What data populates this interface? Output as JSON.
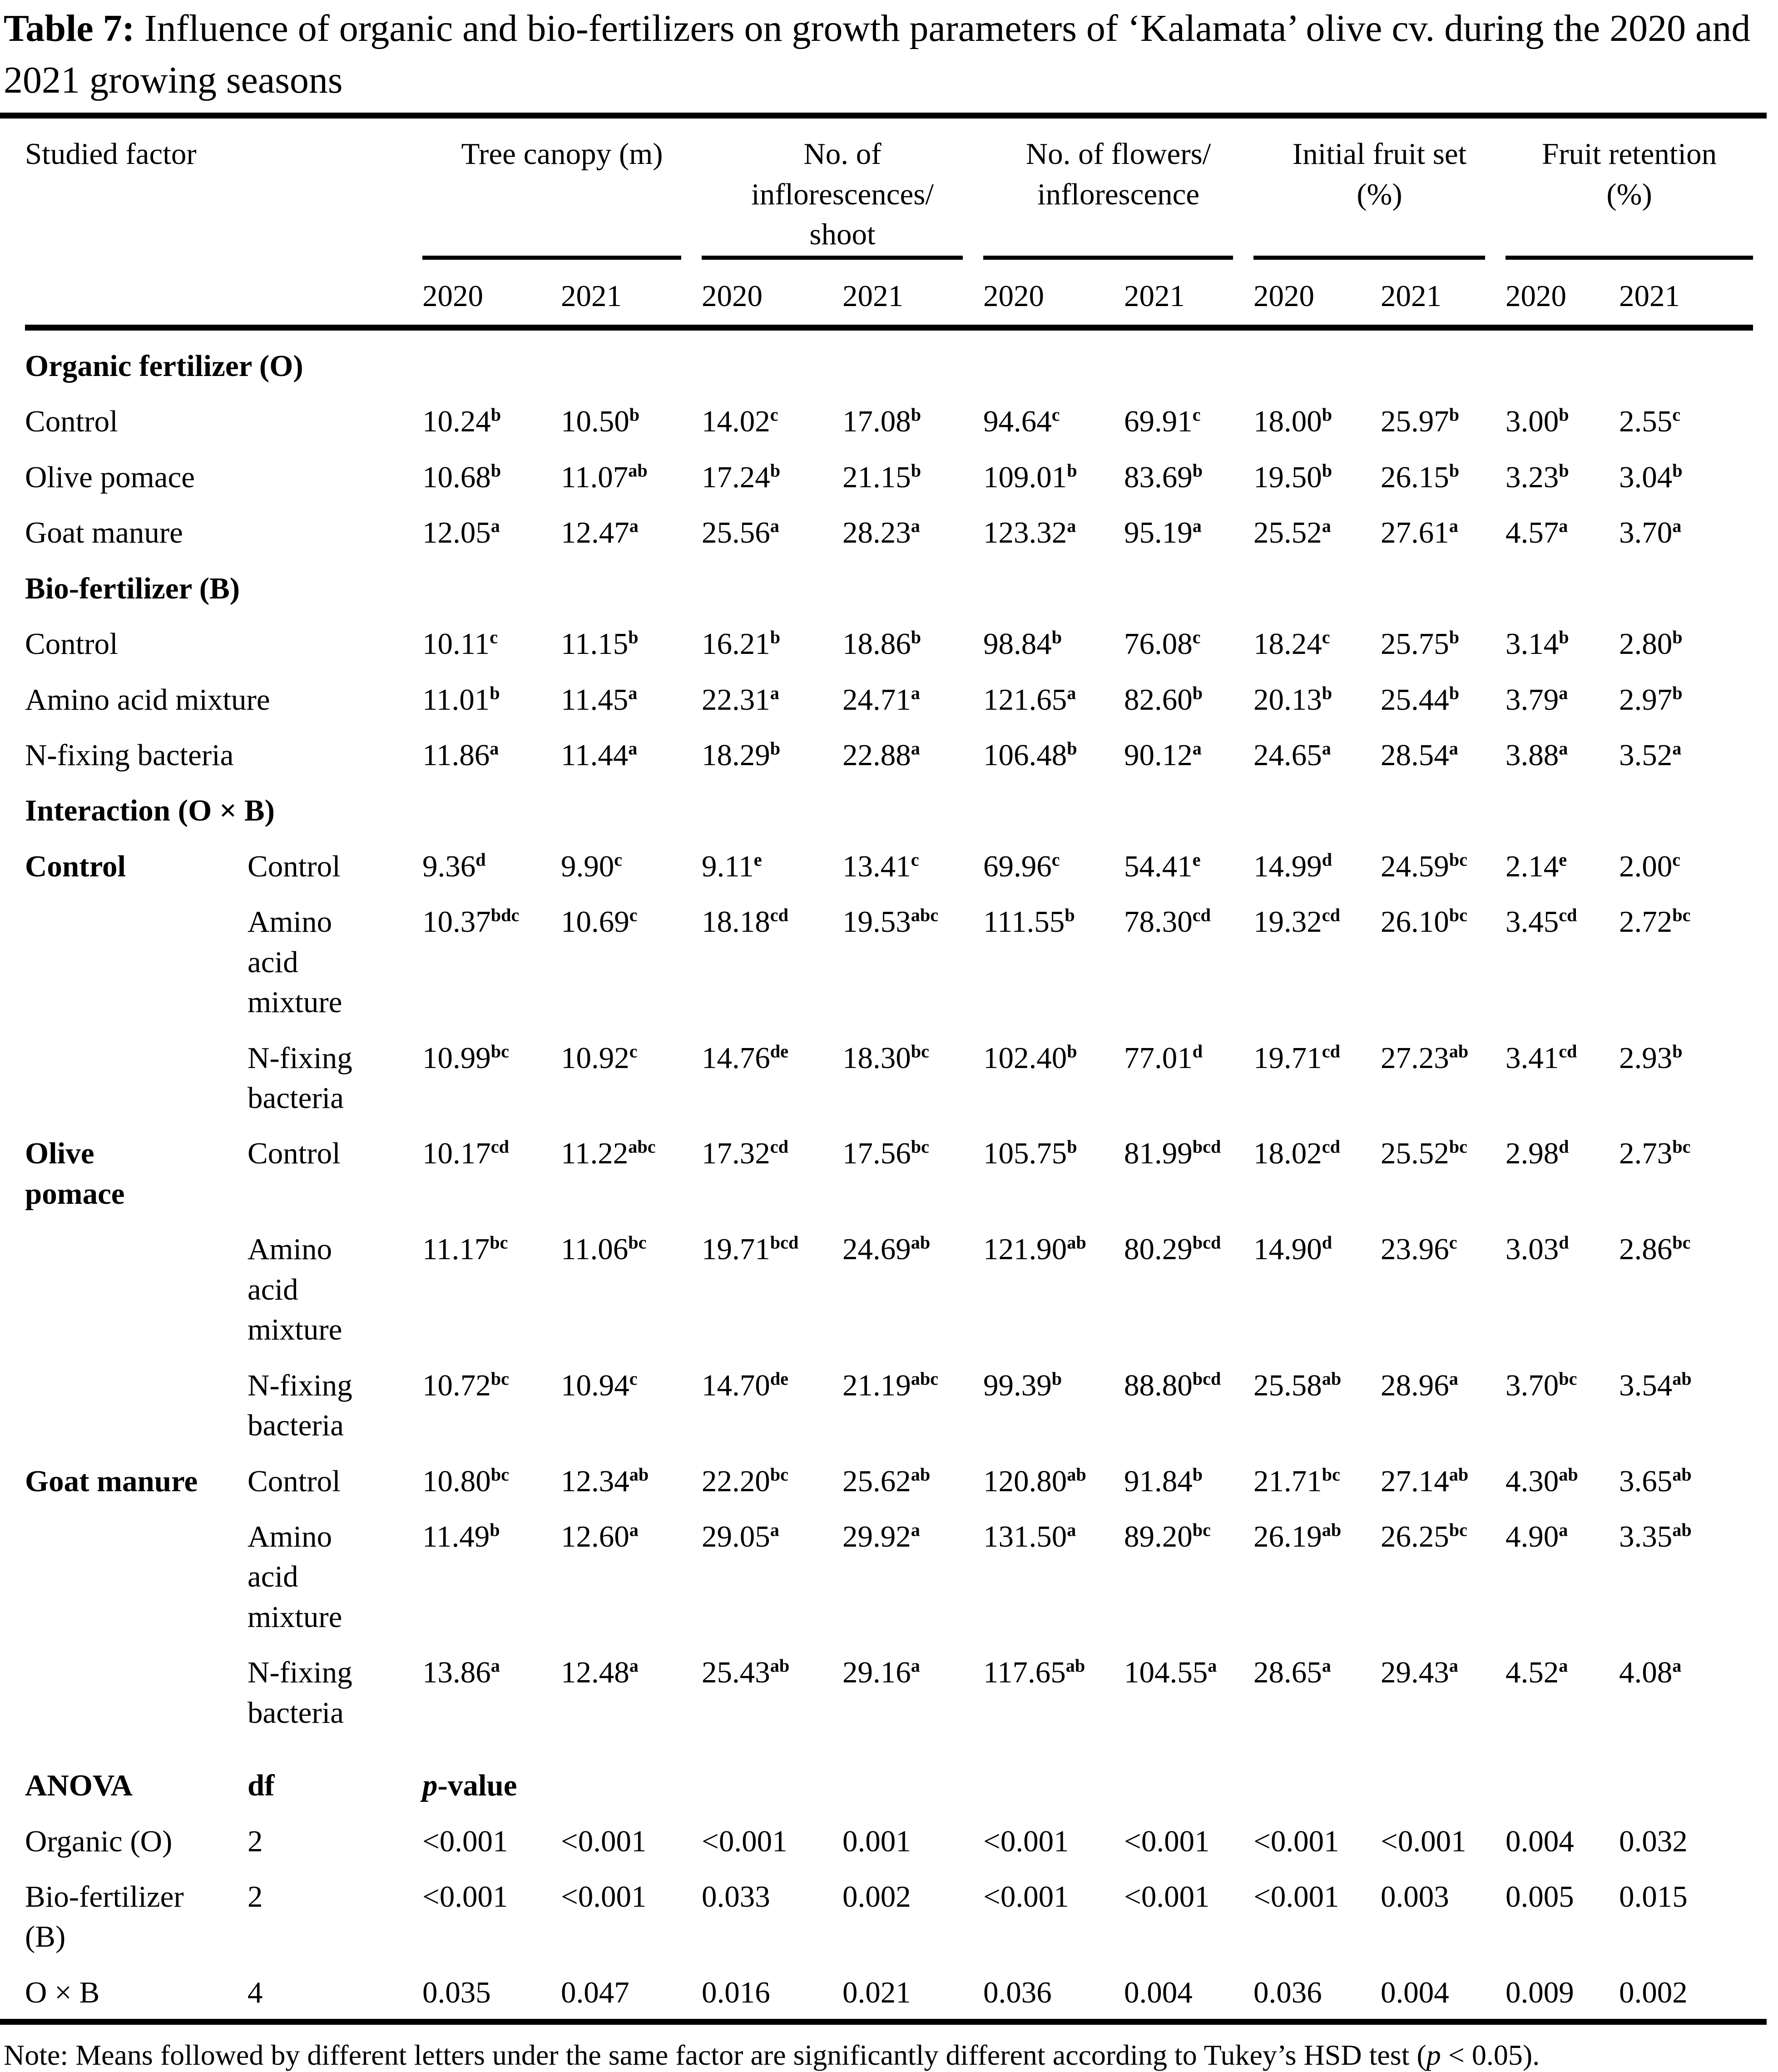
{
  "title": {
    "label": "Table 7:",
    "text": " Influence of organic and bio-fertilizers on growth parameters of ‘Kalamata’ olive cv. during the 2020 and 2021 growing seasons"
  },
  "table": {
    "header": {
      "studied_factor": "Studied factor",
      "groups": [
        {
          "label": "Tree canopy (m)"
        },
        {
          "label": "No. of\ninflorescences/\nshoot"
        },
        {
          "label": "No. of flowers/\ninflorescence"
        },
        {
          "label": "Initial fruit set\n(%)"
        },
        {
          "label": "Fruit retention\n(%)"
        }
      ],
      "years": [
        "2020",
        "2021"
      ]
    },
    "rows": [
      {
        "kind": "section",
        "label": "Organic fertilizer (O)"
      },
      {
        "kind": "data",
        "label": "Control",
        "cells": [
          "10.24^b",
          "10.50^b",
          "14.02^c",
          "17.08^b",
          "94.64^c",
          "69.91^c",
          "18.00^b",
          "25.97^b",
          "3.00^b",
          "2.55^c"
        ]
      },
      {
        "kind": "data",
        "label": "Olive pomace",
        "cells": [
          "10.68^b",
          "11.07^ab",
          "17.24^b",
          "21.15^b",
          "109.01^b",
          "83.69^b",
          "19.50^b",
          "26.15^b",
          "3.23^b",
          "3.04^b"
        ]
      },
      {
        "kind": "data",
        "label": "Goat manure",
        "cells": [
          "12.05^a",
          "12.47^a",
          "25.56^a",
          "28.23^a",
          "123.32^a",
          "95.19^a",
          "25.52^a",
          "27.61^a",
          "4.57^a",
          "3.70^a"
        ]
      },
      {
        "kind": "section",
        "label": "Bio-fertilizer (B)"
      },
      {
        "kind": "data",
        "label": "Control",
        "cells": [
          "10.11^c",
          "11.15^b",
          "16.21^b",
          "18.86^b",
          "98.84^b",
          "76.08^c",
          "18.24^c",
          "25.75^b",
          "3.14^b",
          "2.80^b"
        ]
      },
      {
        "kind": "data",
        "label": "Amino acid mixture",
        "cells": [
          "11.01^b",
          "11.45^a",
          "22.31^a",
          "24.71^a",
          "121.65^a",
          "82.60^b",
          "20.13^b",
          "25.44^b",
          "3.79^a",
          "2.97^b"
        ]
      },
      {
        "kind": "data",
        "label": "N-fixing bacteria",
        "cells": [
          "11.86^a",
          "11.44^a",
          "18.29^b",
          "22.88^a",
          "106.48^b",
          "90.12^a",
          "24.65^a",
          "28.54^a",
          "3.88^a",
          "3.52^a"
        ]
      },
      {
        "kind": "section",
        "label": "Interaction (O × B)"
      },
      {
        "kind": "idata",
        "f1": "Control",
        "f2": "Control",
        "cells": [
          "9.36^d",
          "9.90^c",
          "9.11^e",
          "13.41^c",
          "69.96^c",
          "54.41^e",
          "14.99^d",
          "24.59^bc",
          "2.14^e",
          "2.00^c"
        ]
      },
      {
        "kind": "idata",
        "f1": "",
        "f2": "Amino\nacid\nmixture",
        "cells": [
          "10.37^bdc",
          "10.69^c",
          "18.18^cd",
          "19.53^abc",
          "111.55^b",
          "78.30^cd",
          "19.32^cd",
          "26.10^bc",
          "3.45^cd",
          "2.72^bc"
        ]
      },
      {
        "kind": "idata",
        "f1": "",
        "f2": "N-fixing\nbacteria",
        "cells": [
          "10.99^bc",
          "10.92^c",
          "14.76^de",
          "18.30^bc",
          "102.40^b",
          "77.01^d",
          "19.71^cd",
          "27.23^ab",
          "3.41^cd",
          "2.93^b"
        ]
      },
      {
        "kind": "idata",
        "f1": "Olive\npomace",
        "f2": "Control",
        "cells": [
          "10.17^cd",
          "11.22^abc",
          "17.32^cd",
          "17.56^bc",
          "105.75^b",
          "81.99^bcd",
          "18.02^cd",
          "25.52^bc",
          "2.98^d",
          "2.73^bc"
        ]
      },
      {
        "kind": "idata",
        "f1": "",
        "f2": "Amino\nacid\nmixture",
        "cells": [
          "11.17^bc",
          "11.06^bc",
          "19.71^bcd",
          "24.69^ab",
          "121.90^ab",
          "80.29^bcd",
          "14.90^d",
          "23.96^c",
          "3.03^d",
          "2.86^bc"
        ]
      },
      {
        "kind": "idata",
        "f1": "",
        "f2": "N-fixing\nbacteria",
        "cells": [
          "10.72^bc",
          "10.94^c",
          "14.70^de",
          "21.19^abc",
          "99.39^b",
          "88.80^bcd",
          "25.58^ab",
          "28.96^a",
          "3.70^bc",
          "3.54^ab"
        ]
      },
      {
        "kind": "idata",
        "f1": "Goat manure",
        "f2": "Control",
        "cells": [
          "10.80^bc",
          "12.34^ab",
          "22.20^bc",
          "25.62^ab",
          "120.80^ab",
          "91.84^b",
          "21.71^bc",
          "27.14^ab",
          "4.30^ab",
          "3.65^ab"
        ]
      },
      {
        "kind": "idata",
        "f1": "",
        "f2": "Amino\nacid\nmixture",
        "cells": [
          "11.49^b",
          "12.60^a",
          "29.05^a",
          "29.92^a",
          "131.50^a",
          "89.20^bc",
          "26.19^ab",
          "26.25^bc",
          "4.90^a",
          "3.35^ab"
        ]
      },
      {
        "kind": "idata",
        "f1": "",
        "f2": "N-fixing\nbacteria",
        "cells": [
          "13.86^a",
          "12.48^a",
          "25.43^ab",
          "29.16^a",
          "117.65^ab",
          "104.55^a",
          "28.65^a",
          "29.43^a",
          "4.52^a",
          "4.08^a"
        ]
      },
      {
        "kind": "anova",
        "c1": "ANOVA",
        "c2": "df",
        "c3_p": "p",
        "c3_rest": "-value"
      },
      {
        "kind": "pval",
        "label": "Organic (O)",
        "df": "2",
        "cells": [
          "<0.001",
          "<0.001",
          "<0.001",
          "0.001",
          "<0.001",
          "<0.001",
          "<0.001",
          "<0.001",
          "0.004",
          "0.032"
        ]
      },
      {
        "kind": "pval",
        "label": "Bio-fertilizer\n(B)",
        "df": "2",
        "cells": [
          "<0.001",
          "<0.001",
          "0.033",
          "0.002",
          "<0.001",
          "<0.001",
          "<0.001",
          "0.003",
          "0.005",
          "0.015"
        ]
      },
      {
        "kind": "pval",
        "label": "O × B",
        "df": "4",
        "cells": [
          "0.035",
          "0.047",
          "0.016",
          "0.021",
          "0.036",
          "0.004",
          "0.036",
          "0.004",
          "0.009",
          "0.002"
        ]
      }
    ]
  },
  "note": {
    "before": "Note: Means followed by different letters under the same factor are significantly different according to Tukey’s HSD test (",
    "p": "p",
    "after": " < 0.05)."
  }
}
